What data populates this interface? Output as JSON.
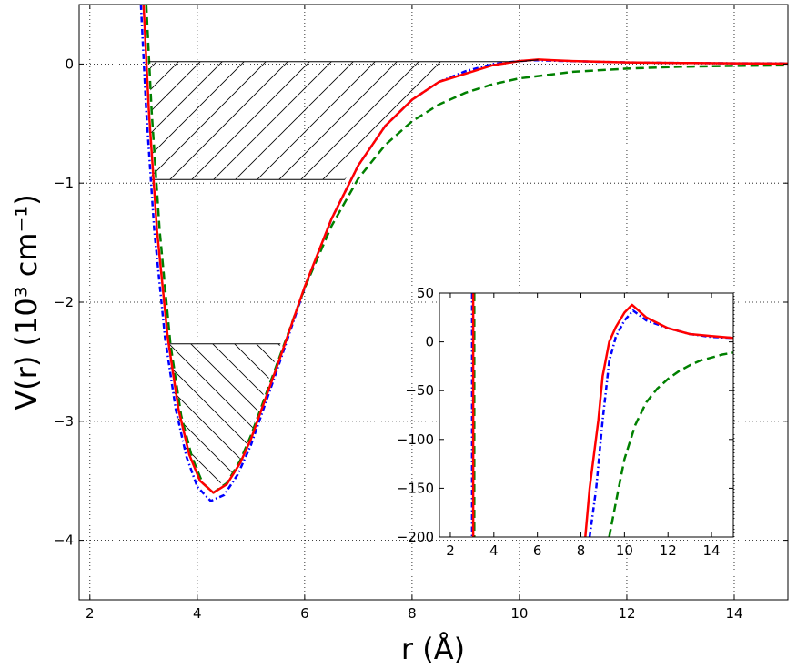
{
  "chart_data": [
    {
      "type": "line",
      "xlabel": "r (Å)",
      "ylabel": "V(r)  (10³ cm⁻¹)",
      "xlim": [
        1.8,
        15.0
      ],
      "ylim": [
        -4.5,
        0.5
      ],
      "xticks": [
        2,
        4,
        6,
        8,
        10,
        12,
        14
      ],
      "yticks": [
        0,
        -1,
        -2,
        -3,
        -4
      ],
      "grid": true,
      "series": [
        {
          "color": "#0000ff",
          "style": "dash-dot",
          "points": [
            [
              2.95,
              0.5
            ],
            [
              3.05,
              -0.4
            ],
            [
              3.2,
              -1.4
            ],
            [
              3.4,
              -2.3
            ],
            [
              3.6,
              -2.9
            ],
            [
              3.8,
              -3.3
            ],
            [
              4.0,
              -3.55
            ],
            [
              4.25,
              -3.67
            ],
            [
              4.5,
              -3.62
            ],
            [
              4.75,
              -3.45
            ],
            [
              5.0,
              -3.2
            ],
            [
              5.5,
              -2.55
            ],
            [
              6.0,
              -1.88
            ],
            [
              6.5,
              -1.3
            ],
            [
              7.0,
              -0.85
            ],
            [
              7.5,
              -0.52
            ],
            [
              8.0,
              -0.3
            ],
            [
              8.5,
              -0.15
            ],
            [
              9.0,
              -0.06
            ],
            [
              9.5,
              0.0
            ],
            [
              10.0,
              0.025
            ],
            [
              10.3,
              0.032
            ],
            [
              10.5,
              0.03
            ],
            [
              11.0,
              0.024
            ],
            [
              12.0,
              0.014
            ],
            [
              13.0,
              0.009
            ],
            [
              14.0,
              0.006
            ],
            [
              15.0,
              0.005
            ]
          ]
        },
        {
          "color": "#008000",
          "style": "dashed",
          "points": [
            [
              3.05,
              0.5
            ],
            [
              3.15,
              -0.4
            ],
            [
              3.3,
              -1.4
            ],
            [
              3.5,
              -2.35
            ],
            [
              3.7,
              -2.95
            ],
            [
              3.9,
              -3.3
            ],
            [
              4.1,
              -3.52
            ],
            [
              4.3,
              -3.6
            ],
            [
              4.55,
              -3.52
            ],
            [
              4.8,
              -3.33
            ],
            [
              5.0,
              -3.12
            ],
            [
              5.5,
              -2.5
            ],
            [
              6.0,
              -1.88
            ],
            [
              6.5,
              -1.36
            ],
            [
              7.0,
              -0.96
            ],
            [
              7.5,
              -0.68
            ],
            [
              8.0,
              -0.48
            ],
            [
              8.5,
              -0.34
            ],
            [
              9.0,
              -0.24
            ],
            [
              9.5,
              -0.17
            ],
            [
              10.0,
              -0.12
            ],
            [
              11.0,
              -0.065
            ],
            [
              12.0,
              -0.038
            ],
            [
              13.0,
              -0.022
            ],
            [
              14.0,
              -0.015
            ],
            [
              15.0,
              -0.011
            ]
          ]
        },
        {
          "color": "#ff0000",
          "style": "solid",
          "points": [
            [
              3.0,
              0.5
            ],
            [
              3.1,
              -0.4
            ],
            [
              3.25,
              -1.4
            ],
            [
              3.45,
              -2.3
            ],
            [
              3.65,
              -2.9
            ],
            [
              3.85,
              -3.28
            ],
            [
              4.05,
              -3.5
            ],
            [
              4.3,
              -3.6
            ],
            [
              4.55,
              -3.53
            ],
            [
              4.8,
              -3.35
            ],
            [
              5.0,
              -3.15
            ],
            [
              5.5,
              -2.52
            ],
            [
              6.0,
              -1.87
            ],
            [
              6.5,
              -1.3
            ],
            [
              7.0,
              -0.85
            ],
            [
              7.5,
              -0.52
            ],
            [
              8.0,
              -0.3
            ],
            [
              8.5,
              -0.15
            ],
            [
              9.0,
              -0.08
            ],
            [
              9.5,
              -0.01
            ],
            [
              10.0,
              0.025
            ],
            [
              10.35,
              0.038
            ],
            [
              10.6,
              0.033
            ],
            [
              11.0,
              0.025
            ],
            [
              12.0,
              0.014
            ],
            [
              13.0,
              0.009
            ],
            [
              14.0,
              0.006
            ],
            [
              15.0,
              0.004
            ]
          ]
        },
        {
          "color": "#000000",
          "style": "thin-solid",
          "points": [
            [
              3.1,
              0.02
            ],
            [
              10.0,
              0.02
            ],
            [
              10.35,
              0.035
            ]
          ]
        }
      ],
      "hatched_regions": [
        {
          "y_level": 0.02,
          "outline": [
            [
              3.12,
              0.02
            ],
            [
              8.75,
              0.02
            ],
            [
              8.5,
              -0.12
            ],
            [
              8.0,
              -0.32
            ],
            [
              7.5,
              -0.55
            ],
            [
              7.0,
              -0.8
            ],
            [
              6.75,
              -0.97
            ],
            [
              3.15,
              -0.97
            ]
          ]
        },
        {
          "y_level": -2.35,
          "outline": [
            [
              3.45,
              -2.35
            ],
            [
              5.55,
              -2.35
            ],
            [
              5.25,
              -2.75
            ],
            [
              5.0,
              -3.1
            ],
            [
              4.7,
              -3.4
            ],
            [
              4.3,
              -3.58
            ],
            [
              4.0,
              -3.5
            ],
            [
              3.8,
              -3.28
            ],
            [
              3.6,
              -2.9
            ]
          ]
        }
      ],
      "level_lines": [
        {
          "y": -0.97,
          "x": [
            3.15,
            6.75
          ]
        },
        {
          "y": -2.35,
          "x": [
            3.45,
            5.55
          ]
        }
      ]
    },
    {
      "type": "line",
      "inset": true,
      "xlim": [
        1.5,
        15.0
      ],
      "ylim": [
        -200,
        50
      ],
      "xticks": [
        2,
        4,
        6,
        8,
        10,
        12,
        14
      ],
      "yticks": [
        50,
        0,
        -50,
        -100,
        -150,
        -200
      ],
      "grid": false,
      "series": [
        {
          "color": "#0000ff",
          "style": "dash-dot",
          "points": [
            [
              8.4,
              -200
            ],
            [
              8.7,
              -150
            ],
            [
              9.0,
              -80
            ],
            [
              9.3,
              -20
            ],
            [
              9.6,
              5
            ],
            [
              10.0,
              22
            ],
            [
              10.4,
              32
            ],
            [
              11.0,
              22
            ],
            [
              12.0,
              14
            ],
            [
              13.0,
              8
            ],
            [
              14.0,
              5
            ],
            [
              15.0,
              4
            ]
          ]
        },
        {
          "color": "#0000ff",
          "style": "dash-dot",
          "points": [
            [
              3.0,
              50
            ],
            [
              3.0,
              -200
            ]
          ]
        },
        {
          "color": "#008000",
          "style": "dashed",
          "points": [
            [
              9.3,
              -200
            ],
            [
              9.6,
              -165
            ],
            [
              10.0,
              -120
            ],
            [
              10.5,
              -85
            ],
            [
              11.0,
              -62
            ],
            [
              11.5,
              -48
            ],
            [
              12.0,
              -38
            ],
            [
              12.5,
              -30
            ],
            [
              13.0,
              -24
            ],
            [
              13.5,
              -19
            ],
            [
              14.0,
              -16
            ],
            [
              14.5,
              -13
            ],
            [
              15.0,
              -11
            ]
          ]
        },
        {
          "color": "#008000",
          "style": "dashed",
          "points": [
            [
              3.1,
              50
            ],
            [
              3.1,
              -200
            ]
          ]
        },
        {
          "color": "#ff0000",
          "style": "solid",
          "points": [
            [
              8.2,
              -200
            ],
            [
              8.4,
              -150
            ],
            [
              8.6,
              -115
            ],
            [
              8.8,
              -80
            ],
            [
              9.0,
              -35
            ],
            [
              9.3,
              0
            ],
            [
              9.6,
              15
            ],
            [
              10.0,
              30
            ],
            [
              10.35,
              38
            ],
            [
              10.6,
              33
            ],
            [
              11.0,
              25
            ],
            [
              12.0,
              14
            ],
            [
              13.0,
              8
            ],
            [
              14.0,
              6
            ],
            [
              15.0,
              4
            ]
          ]
        },
        {
          "color": "#ff0000",
          "style": "solid",
          "points": [
            [
              3.05,
              50
            ],
            [
              3.05,
              -200
            ]
          ]
        }
      ]
    }
  ]
}
